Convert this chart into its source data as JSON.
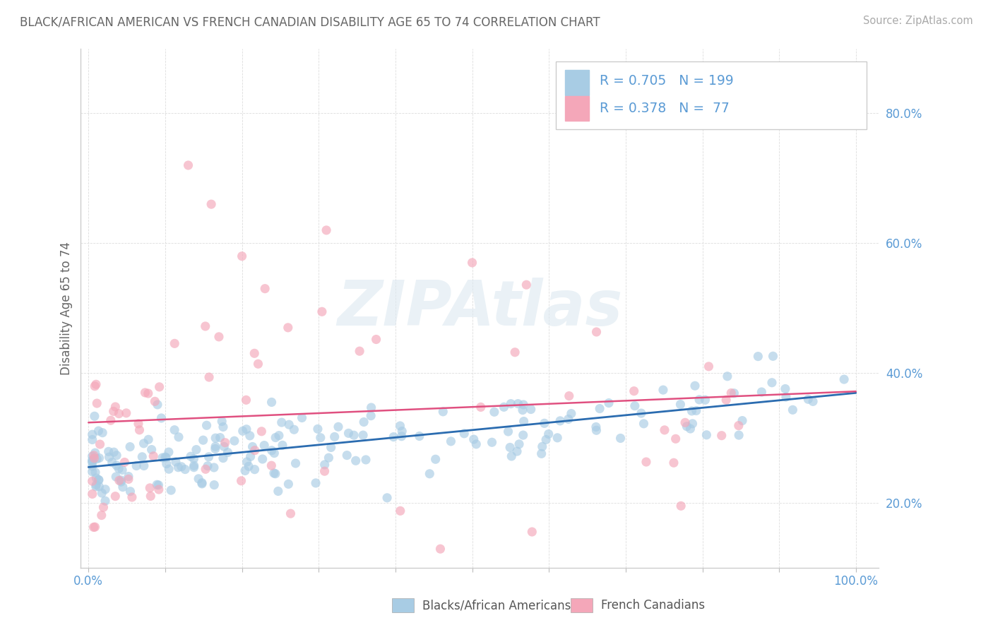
{
  "title": "BLACK/AFRICAN AMERICAN VS FRENCH CANADIAN DISABILITY AGE 65 TO 74 CORRELATION CHART",
  "source": "Source: ZipAtlas.com",
  "ylabel": "Disability Age 65 to 74",
  "xlim": [
    -0.01,
    1.03
  ],
  "ylim": [
    0.1,
    0.9
  ],
  "x_tick_positions": [
    0.0,
    0.1,
    0.2,
    0.3,
    0.4,
    0.5,
    0.6,
    0.7,
    0.8,
    0.9,
    1.0
  ],
  "x_tick_labels": [
    "0.0%",
    "",
    "",
    "",
    "",
    "",
    "",
    "",
    "",
    "",
    "100.0%"
  ],
  "y_tick_positions": [
    0.2,
    0.4,
    0.6,
    0.8
  ],
  "y_tick_labels": [
    "20.0%",
    "40.0%",
    "60.0%",
    "80.0%"
  ],
  "legend1_label": "Blacks/African Americans",
  "legend2_label": "French Canadians",
  "R1": 0.705,
  "N1": 199,
  "R2": 0.378,
  "N2": 77,
  "blue_scatter_color": "#a8cce4",
  "pink_scatter_color": "#f4a7b9",
  "blue_line_color": "#2b6cb0",
  "pink_line_color": "#e05080",
  "axis_label_color": "#5b9bd5",
  "title_color": "#666666",
  "source_color": "#aaaaaa",
  "ylabel_color": "#666666",
  "grid_color": "#dddddd",
  "spine_color": "#cccccc",
  "legend_text_color_blue": "#5b9bd5",
  "legend_text_color_pink": "#e05080",
  "watermark_color": "#dce8f0",
  "watermark_text": "ZIPAtlas",
  "bottom_legend_color": "#555555"
}
